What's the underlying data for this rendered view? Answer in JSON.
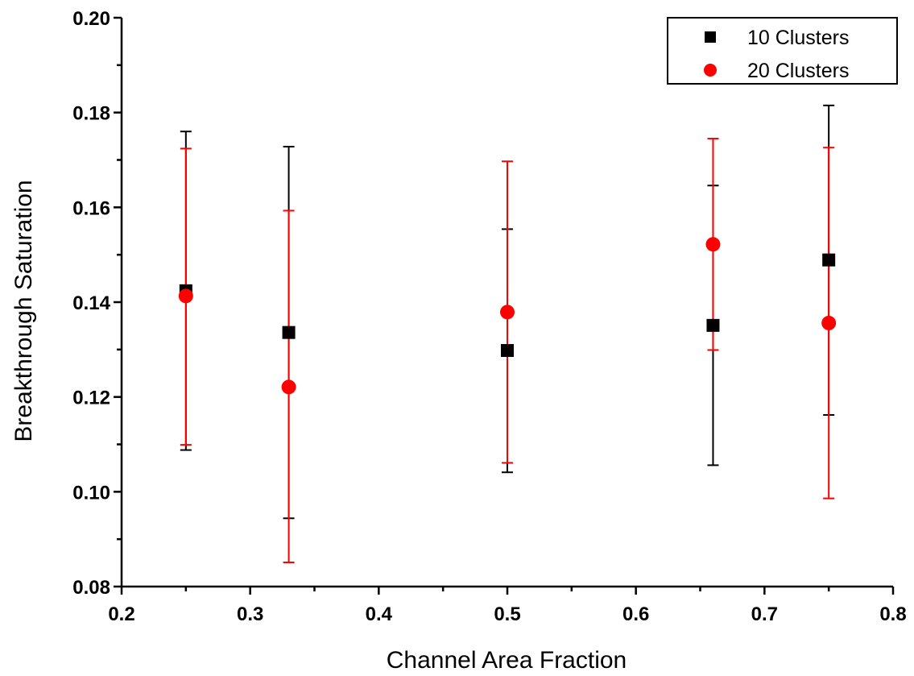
{
  "chart_data": {
    "type": "scatter",
    "title": "",
    "xlabel": "Channel Area Fraction",
    "ylabel": "Breakthrough Saturation",
    "xlim": [
      0.2,
      0.8
    ],
    "ylim": [
      0.08,
      0.2
    ],
    "x_ticks": [
      "0.2",
      "0.3",
      "0.4",
      "0.5",
      "0.6",
      "0.7",
      "0.8"
    ],
    "y_ticks": [
      "0.08",
      "0.10",
      "0.12",
      "0.14",
      "0.16",
      "0.18",
      "0.20"
    ],
    "grid": false,
    "legend_position": "top-right",
    "series": [
      {
        "name": "10 Clusters",
        "marker": "square",
        "color": "#000000",
        "points": [
          {
            "x": 0.25,
            "y": 0.1424,
            "y_low": 0.1088,
            "y_high": 0.176
          },
          {
            "x": 0.33,
            "y": 0.1336,
            "y_low": 0.0944,
            "y_high": 0.1728
          },
          {
            "x": 0.5,
            "y": 0.1298,
            "y_low": 0.1041,
            "y_high": 0.1554
          },
          {
            "x": 0.66,
            "y": 0.1351,
            "y_low": 0.1056,
            "y_high": 0.1646
          },
          {
            "x": 0.75,
            "y": 0.1489,
            "y_low": 0.1162,
            "y_high": 0.1815
          }
        ]
      },
      {
        "name": "20 Clusters",
        "marker": "circle",
        "color": "#ff0000",
        "points": [
          {
            "x": 0.25,
            "y": 0.1413,
            "y_low": 0.1099,
            "y_high": 0.1724
          },
          {
            "x": 0.33,
            "y": 0.1221,
            "y_low": 0.0851,
            "y_high": 0.1593
          },
          {
            "x": 0.5,
            "y": 0.1379,
            "y_low": 0.1061,
            "y_high": 0.1697
          },
          {
            "x": 0.66,
            "y": 0.1522,
            "y_low": 0.1299,
            "y_high": 0.1745
          },
          {
            "x": 0.75,
            "y": 0.1356,
            "y_low": 0.0986,
            "y_high": 0.1726
          }
        ]
      }
    ]
  }
}
